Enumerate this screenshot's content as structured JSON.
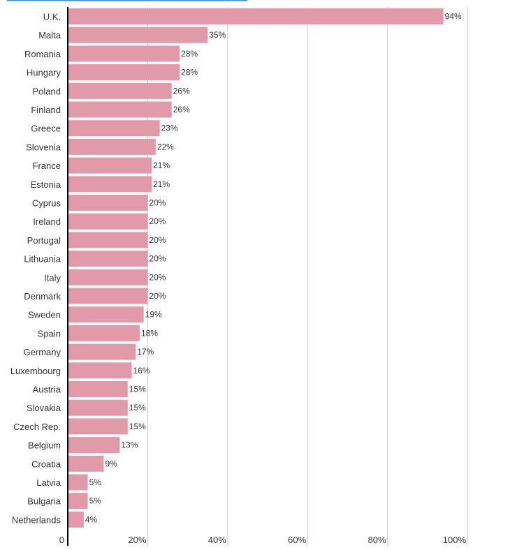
{
  "chart_data": {
    "type": "bar",
    "orientation": "horizontal",
    "categories": [
      "U.K.",
      "Malta",
      "Romania",
      "Hungary",
      "Poland",
      "Finland",
      "Greece",
      "Slovenia",
      "France",
      "Estonia",
      "Cyprus",
      "Ireland",
      "Portugal",
      "Lithuania",
      "Italy",
      "Denmark",
      "Sweden",
      "Spain",
      "Germany",
      "Luxembourg",
      "Austria",
      "Slovakia",
      "Czech Rep.",
      "Belgium",
      "Croatia",
      "Latvia",
      "Bulgaria",
      "Netherlands"
    ],
    "values": [
      94,
      35,
      28,
      28,
      26,
      26,
      23,
      22,
      21,
      21,
      20,
      20,
      20,
      20,
      20,
      20,
      19,
      18,
      17,
      16,
      15,
      15,
      15,
      13,
      9,
      5,
      5,
      4
    ],
    "value_labels": [
      "94%",
      "35%",
      "28%",
      "28%",
      "26%",
      "26%",
      "23%",
      "22%",
      "21%",
      "21%",
      "20%",
      "20%",
      "20%",
      "20%",
      "20%",
      "20%",
      "19%",
      "18%",
      "17%",
      "16%",
      "15%",
      "15%",
      "15%",
      "13%",
      "9%",
      "5%",
      "5%",
      "4%"
    ],
    "xlim": [
      0,
      100
    ],
    "xticks": [
      0,
      20,
      40,
      60,
      80,
      100
    ],
    "xtick_labels": [
      "0",
      "20%",
      "40%",
      "60%",
      "80%",
      "100%"
    ],
    "grid": true,
    "title": "",
    "xlabel": "",
    "ylabel": ""
  },
  "colors": {
    "bar": "#e19aa9",
    "grid": "#cccccc",
    "axis": "#000000",
    "accent": "#3b8fd0",
    "text": "#333333"
  }
}
